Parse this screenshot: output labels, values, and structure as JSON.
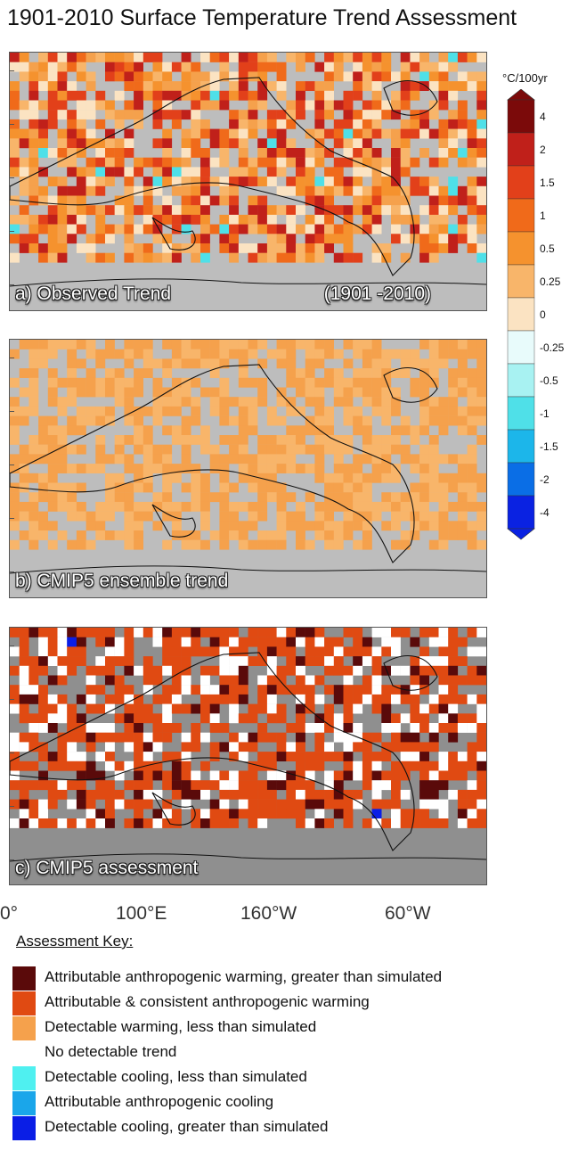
{
  "title": "1901-2010 Surface Temperature Trend Assessment",
  "panels": [
    {
      "label": "a)  Observed Trend",
      "period": "(1901 -2010)",
      "kind": "trend",
      "seed": 11
    },
    {
      "label": "b) CMIP5 ensemble trend",
      "period": "",
      "kind": "ensemble",
      "seed": 23
    },
    {
      "label": "c) CMIP5 assessment",
      "period": "",
      "kind": "assessment",
      "seed": 37
    }
  ],
  "colorbar": {
    "unit": "°C/100yr",
    "labels": [
      "4",
      "2",
      "1.5",
      "1",
      "0.5",
      "0.25",
      "0",
      "-0.25",
      "-0.5",
      "-1",
      "-1.5",
      "-2",
      "-4"
    ],
    "colors": [
      "#7b0a0a",
      "#c0201a",
      "#e2401a",
      "#f06a1a",
      "#f5922e",
      "#f8b56a",
      "#fbe3c2",
      "#e8fbfb",
      "#a8f2f2",
      "#4fe0e8",
      "#1cb6ea",
      "#0a6ee6",
      "#0a22e2"
    ]
  },
  "longitude_labels": [
    "0°",
    "100°E",
    "160°W",
    "60°W"
  ],
  "assessment_key": {
    "title": "Assessment Key:",
    "items": [
      {
        "label": "Attributable anthropogenic warming, greater than simulated",
        "color": "#5a0a0a"
      },
      {
        "label": "Attributable & consistent  anthropogenic warming",
        "color": "#e04a12"
      },
      {
        "label": "Detectable warming, less than simulated",
        "color": "#f5a14c"
      },
      {
        "label": "No detectable trend",
        "color": "#ffffff"
      },
      {
        "label": "Detectable cooling, less than simulated",
        "color": "#4ff0f0"
      },
      {
        "label": "Attributable anthropogenic cooling",
        "color": "#1aa6ea"
      },
      {
        "label": "Detectable cooling, greater than simulated",
        "color": "#0a1ee6"
      }
    ]
  }
}
